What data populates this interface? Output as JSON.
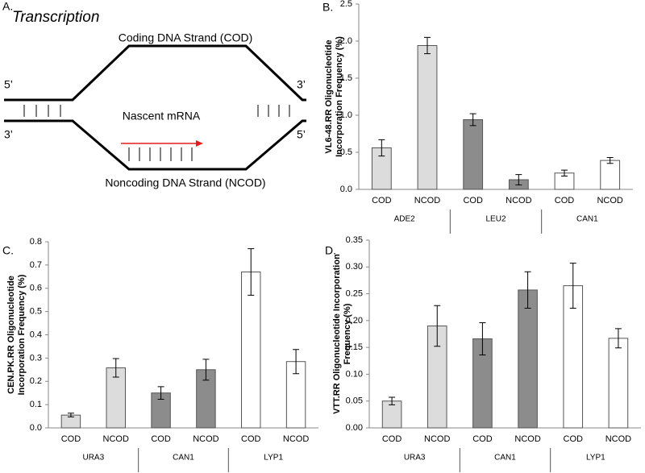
{
  "diagram": {
    "panel": "A.",
    "title": "Transcription",
    "coding": "Coding DNA Strand (COD)",
    "mrna": "Nascent mRNA",
    "noncoding": "Noncoding DNA Strand (NCOD)",
    "ends": [
      "5’",
      "3’",
      "3’",
      "5’"
    ]
  },
  "chart_data": [
    {
      "type": "bar",
      "panel": "B.",
      "ylabel": [
        "VL6-48.RR Oligonucleotide",
        "Incorporation Frequency (%)"
      ],
      "categories": [
        "COD",
        "NCOD",
        "COD",
        "NCOD",
        "COD",
        "NCOD"
      ],
      "groups": [
        "ADE2",
        "LEU2",
        "CAN1"
      ],
      "group_colors": [
        "#dcdcdc",
        "#8c8c8c",
        "#ffffff"
      ],
      "values": [
        0.56,
        1.94,
        0.94,
        0.13,
        0.22,
        0.39
      ],
      "errors": [
        0.11,
        0.11,
        0.08,
        0.07,
        0.04,
        0.04
      ],
      "ylim": [
        0,
        2.5
      ],
      "yticks": [
        {
          "value": 0,
          "label": "0.0"
        },
        0.5,
        {
          "value": 1,
          "label": "1.0"
        },
        1.5,
        {
          "value": 2,
          "label": "2.0"
        },
        2.5
      ]
    },
    {
      "type": "bar",
      "panel": "C.",
      "ylabel": [
        "CEN.PK.RR Oligonucleotide",
        "Incorporation Frequency (%)"
      ],
      "categories": [
        "COD",
        "NCOD",
        "COD",
        "NCOD",
        "COD",
        "NCOD"
      ],
      "groups": [
        "URA3",
        "CAN1",
        "LYP1"
      ],
      "group_colors": [
        "#dcdcdc",
        "#8c8c8c",
        "#ffffff"
      ],
      "values": [
        0.055,
        0.258,
        0.15,
        0.25,
        0.67,
        0.285
      ],
      "errors": [
        0.008,
        0.04,
        0.027,
        0.045,
        0.1,
        0.052
      ],
      "ylim": [
        0,
        0.8
      ],
      "yticks": [
        {
          "value": 0,
          "label": "0.0"
        },
        0.1,
        0.2,
        0.3,
        0.4,
        0.5,
        0.6,
        0.7,
        0.8
      ]
    },
    {
      "type": "bar",
      "panel": "D.",
      "ylabel": [
        "VTT.RR Oligonucleotide Incorporation",
        "Frequency (%)"
      ],
      "categories": [
        "COD",
        "NCOD",
        "COD",
        "NCOD",
        "COD",
        "NCOD"
      ],
      "groups": [
        "URA3",
        "CAN1",
        "LYP1"
      ],
      "group_colors": [
        "#dcdcdc",
        "#8c8c8c",
        "#ffffff"
      ],
      "values": [
        0.05,
        0.19,
        0.166,
        0.257,
        0.265,
        0.167
      ],
      "errors": [
        0.007,
        0.038,
        0.03,
        0.034,
        0.042,
        0.018
      ],
      "ylim": [
        0,
        0.35
      ],
      "yticks": [
        {
          "value": 0,
          "label": "0.00"
        },
        0.05,
        {
          "value": 0.1,
          "label": "0.10"
        },
        0.15,
        {
          "value": 0.2,
          "label": "0.20"
        },
        0.25,
        {
          "value": 0.3,
          "label": "0.30"
        },
        0.35
      ]
    }
  ]
}
